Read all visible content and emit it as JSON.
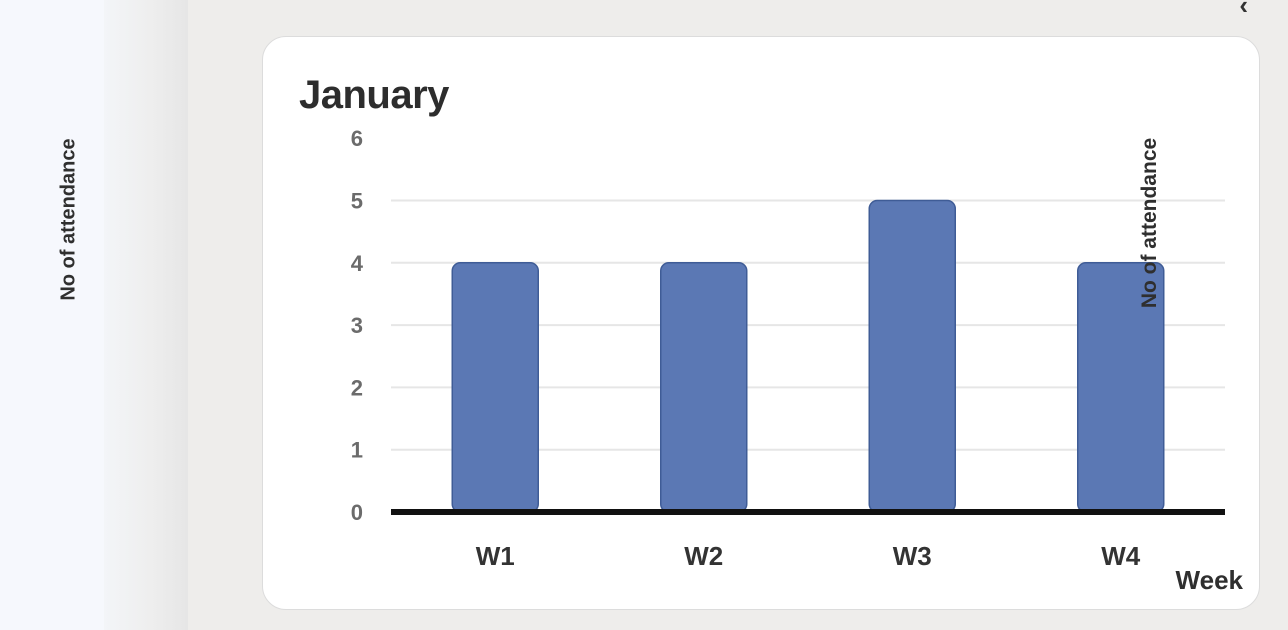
{
  "side_panel": {
    "rotated_label": "No of attendance"
  },
  "corner_icon": "chevron-left-icon",
  "card": {
    "title": "January"
  },
  "colors": {
    "bar": "#5b78b4",
    "bar_stroke": "#3f5c96",
    "grid": "#e6e6e6",
    "axis": "#111111",
    "tick": "#6b6b6b"
  },
  "chart_data": {
    "type": "bar",
    "title": "January",
    "categories": [
      "W1",
      "W2",
      "W3",
      "W4"
    ],
    "values": [
      4,
      4,
      5,
      4
    ],
    "xlabel": "Week",
    "ylabel": "No of attendance",
    "ylim": [
      0,
      6
    ],
    "yticks": [
      "0",
      "1",
      "2",
      "3",
      "4",
      "5",
      "6"
    ],
    "grid": true
  }
}
